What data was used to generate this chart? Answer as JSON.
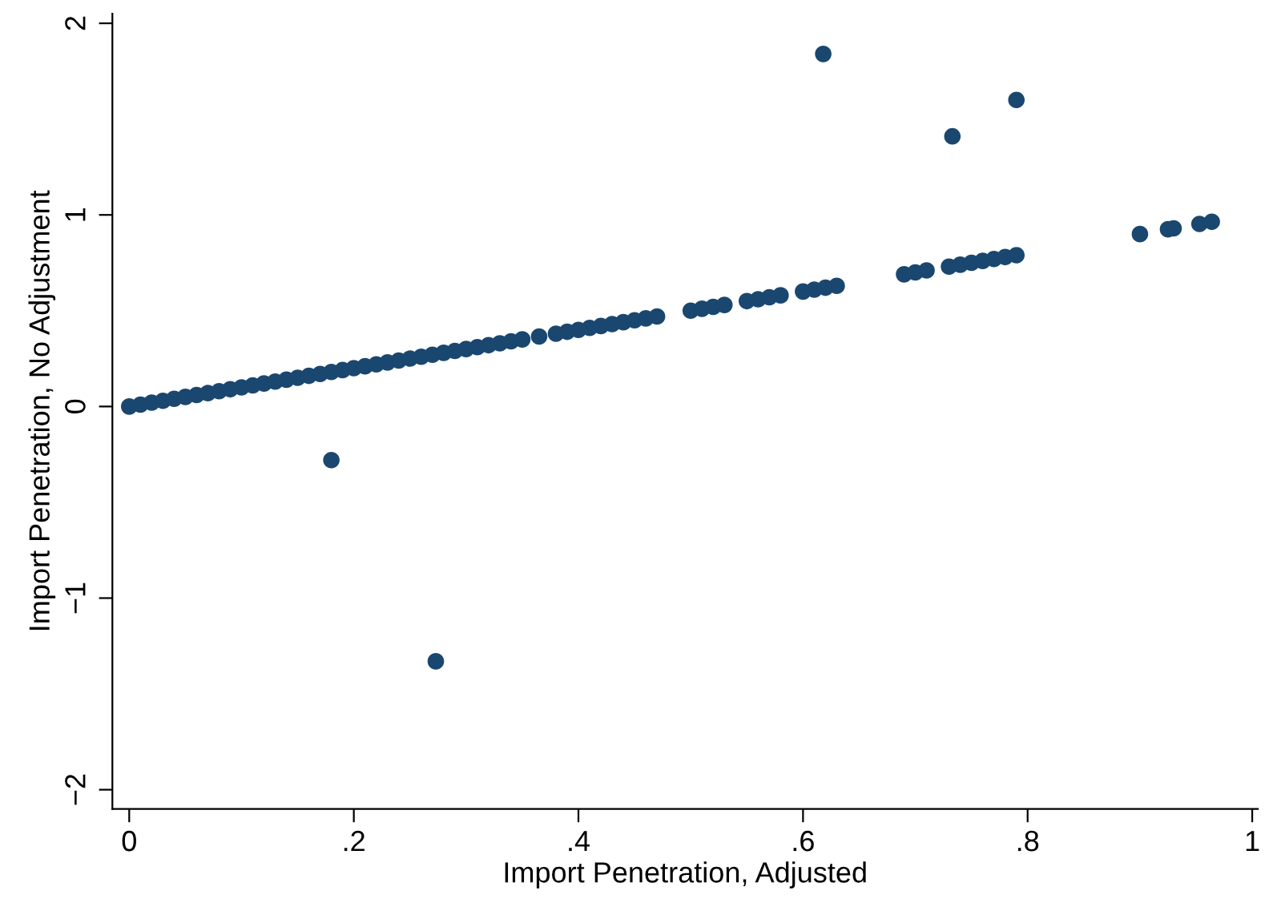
{
  "chart_data": {
    "type": "scatter",
    "xlabel": "Import Penetration, Adjusted",
    "ylabel": "Import Penetration, No Adjustment",
    "marker": "circle",
    "grid": false,
    "legend": false,
    "xlim": [
      -0.015,
      1.005
    ],
    "ylim": [
      -2.1,
      2.05
    ],
    "xticks": [
      0,
      {
        "value": 0.2,
        "label": ".2"
      },
      {
        "value": 0.4,
        "label": ".4"
      },
      {
        "value": 0.6,
        "label": ".6"
      },
      {
        "value": 0.8,
        "label": ".8"
      },
      1
    ],
    "yticks": [
      {
        "value": -2,
        "label": "−2"
      },
      {
        "value": -1,
        "label": "−1"
      },
      0,
      1,
      2
    ],
    "series": [
      {
        "color": "#1a476f",
        "x": [
          0,
          0.01,
          0.02,
          0.03,
          0.04,
          0.05,
          0.06,
          0.07,
          0.08,
          0.09,
          0.1,
          0.11,
          0.12,
          0.13,
          0.14,
          0.15,
          0.16,
          0.17,
          0.18,
          0.19,
          0.2,
          0.21,
          0.22,
          0.23,
          0.24,
          0.25,
          0.26,
          0.27,
          0.28,
          0.29,
          0.3,
          0.31,
          0.32,
          0.33,
          0.34,
          0.35,
          0.365,
          0.38,
          0.39,
          0.4,
          0.41,
          0.42,
          0.43,
          0.44,
          0.45,
          0.46,
          0.47,
          0.5,
          0.51,
          0.52,
          0.53,
          0.55,
          0.56,
          0.57,
          0.58,
          0.6,
          0.61,
          0.62,
          0.63,
          0.69,
          0.7,
          0.71,
          0.73,
          0.74,
          0.75,
          0.76,
          0.77,
          0.78,
          0.79,
          0.9,
          0.925,
          0.93,
          0.953,
          0.964,
          0.618,
          0.733,
          0.79,
          0.18,
          0.273
        ],
        "values": [
          0,
          0.01,
          0.02,
          0.03,
          0.04,
          0.05,
          0.06,
          0.07,
          0.08,
          0.09,
          0.1,
          0.11,
          0.12,
          0.13,
          0.14,
          0.15,
          0.16,
          0.17,
          0.18,
          0.19,
          0.2,
          0.21,
          0.22,
          0.23,
          0.24,
          0.25,
          0.26,
          0.27,
          0.28,
          0.29,
          0.3,
          0.31,
          0.32,
          0.33,
          0.34,
          0.35,
          0.365,
          0.38,
          0.39,
          0.4,
          0.41,
          0.42,
          0.43,
          0.44,
          0.45,
          0.46,
          0.47,
          0.5,
          0.51,
          0.52,
          0.53,
          0.55,
          0.56,
          0.57,
          0.58,
          0.6,
          0.61,
          0.62,
          0.63,
          0.69,
          0.7,
          0.71,
          0.73,
          0.74,
          0.75,
          0.76,
          0.77,
          0.78,
          0.79,
          0.9,
          0.925,
          0.93,
          0.953,
          0.964,
          1.84,
          1.41,
          1.6,
          -0.28,
          -1.33
        ]
      }
    ]
  }
}
